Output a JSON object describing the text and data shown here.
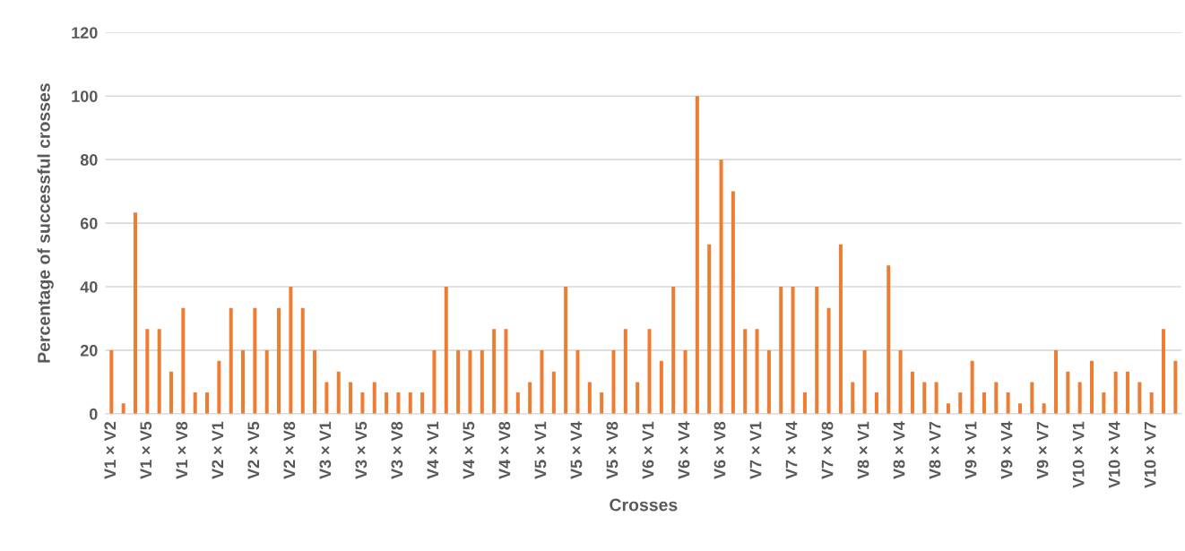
{
  "chart_data": {
    "type": "bar",
    "xlabel": "Crosses",
    "ylabel": "Percentage of successful crosses",
    "categories": [
      "V1 × V2",
      null,
      null,
      "V1 × V5",
      null,
      null,
      "V1 × V8",
      null,
      null,
      "V2 × V1",
      null,
      null,
      "V2 × V5",
      null,
      null,
      "V2 × V8",
      null,
      null,
      "V3 × V1",
      null,
      null,
      "V3 × V5",
      null,
      null,
      "V3 × V8",
      null,
      null,
      "V4 × V1",
      null,
      null,
      "V4 × V5",
      null,
      null,
      "V4 × V8",
      null,
      null,
      "V5 × V1",
      null,
      null,
      "V5 × V4",
      null,
      null,
      "V5 × V8",
      null,
      null,
      "V6 × V1",
      null,
      null,
      "V6 × V4",
      null,
      null,
      "V6 × V8",
      null,
      null,
      "V7 × V1",
      null,
      null,
      "V7 × V4",
      null,
      null,
      "V7 × V8",
      null,
      null,
      "V8 × V1",
      null,
      null,
      "V8 × V4",
      null,
      null,
      "V8 × V7",
      null,
      null,
      "V9 × V1",
      null,
      null,
      "V9 × V4",
      null,
      null,
      "V9 × V7",
      null,
      null,
      "V10 × V1",
      null,
      null,
      "V10 × V4",
      null,
      null,
      "V10 × V7",
      null,
      null
    ],
    "values": [
      20,
      3.3,
      63.3,
      26.7,
      26.7,
      13.3,
      33.3,
      6.7,
      6.7,
      16.7,
      33.3,
      20,
      33.3,
      20,
      33.3,
      40,
      33.3,
      20,
      10,
      13.3,
      10,
      6.7,
      10,
      6.7,
      6.7,
      6.7,
      6.7,
      20,
      40,
      20,
      20,
      20,
      26.7,
      26.7,
      6.7,
      10,
      20,
      13.3,
      40,
      20,
      10,
      6.7,
      20,
      26.7,
      10,
      26.7,
      16.7,
      40,
      20,
      100,
      53.3,
      80,
      70,
      26.7,
      26.7,
      20,
      40,
      40,
      6.7,
      40,
      33.3,
      53.3,
      10,
      20,
      6.7,
      46.7,
      20,
      13.3,
      10,
      10,
      3.3,
      6.7,
      16.7,
      6.7,
      10,
      6.7,
      3.3,
      10,
      3.3,
      20,
      13.3,
      10,
      16.7,
      6.7,
      13.3,
      13.3,
      10,
      6.7,
      26.7,
      16.7
    ],
    "color": "#ed7d31",
    "ylim": [
      0,
      120
    ],
    "yticks": [
      0,
      20,
      40,
      60,
      80,
      100,
      120
    ],
    "grid": "y"
  }
}
